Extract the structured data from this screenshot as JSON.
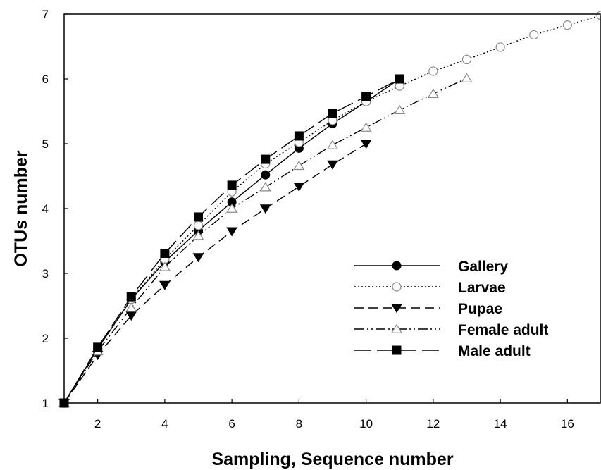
{
  "chart_data": {
    "type": "line",
    "xlabel": "Sampling, Sequence number",
    "ylabel": "OTUs number",
    "xlim": [
      1,
      17
    ],
    "ylim": [
      1,
      7
    ],
    "xticks": [
      2,
      4,
      6,
      8,
      10,
      12,
      14,
      16
    ],
    "yticks": [
      1,
      2,
      3,
      4,
      5,
      6,
      7
    ],
    "grid": false,
    "legend_position": "lower-right",
    "series": [
      {
        "name": "Gallery",
        "marker": "filled-circle",
        "line_style": "solid",
        "x": [
          1,
          2,
          3,
          4,
          5,
          6,
          7,
          8,
          9,
          10,
          11
        ],
        "y": [
          1.0,
          1.84,
          2.6,
          3.18,
          3.66,
          4.1,
          4.52,
          4.93,
          5.31,
          5.65,
          6.0
        ]
      },
      {
        "name": "Larvae",
        "marker": "open-circle",
        "line_style": "dotted",
        "x": [
          1,
          2,
          3,
          4,
          5,
          6,
          7,
          8,
          9,
          10,
          11,
          12,
          13,
          14,
          15,
          16,
          17
        ],
        "y": [
          1.0,
          1.84,
          2.6,
          3.22,
          3.74,
          4.26,
          4.69,
          5.02,
          5.36,
          5.65,
          5.89,
          6.12,
          6.3,
          6.49,
          6.68,
          6.83,
          6.98
        ]
      },
      {
        "name": "Pupae",
        "marker": "filled-triangle-down",
        "line_style": "dashed",
        "x": [
          1,
          2,
          3,
          4,
          5,
          6,
          7,
          8,
          9,
          10
        ],
        "y": [
          1.0,
          1.74,
          2.35,
          2.82,
          3.25,
          3.65,
          4.0,
          4.34,
          4.68,
          5.0
        ]
      },
      {
        "name": "Female adult",
        "marker": "open-triangle-up",
        "line_style": "dash-dot-dot",
        "x": [
          1,
          2,
          3,
          4,
          5,
          6,
          7,
          8,
          9,
          10,
          11,
          12,
          13
        ],
        "y": [
          1.0,
          1.8,
          2.47,
          3.1,
          3.58,
          4.0,
          4.33,
          4.66,
          4.98,
          5.25,
          5.52,
          5.77,
          6.01
        ]
      },
      {
        "name": "Male adult",
        "marker": "filled-square",
        "line_style": "long-dash",
        "x": [
          1,
          2,
          3,
          4,
          5,
          6,
          7,
          8,
          9,
          10,
          11
        ],
        "y": [
          1.0,
          1.86,
          2.64,
          3.31,
          3.87,
          4.36,
          4.76,
          5.12,
          5.47,
          5.73,
          6.0
        ]
      }
    ]
  }
}
